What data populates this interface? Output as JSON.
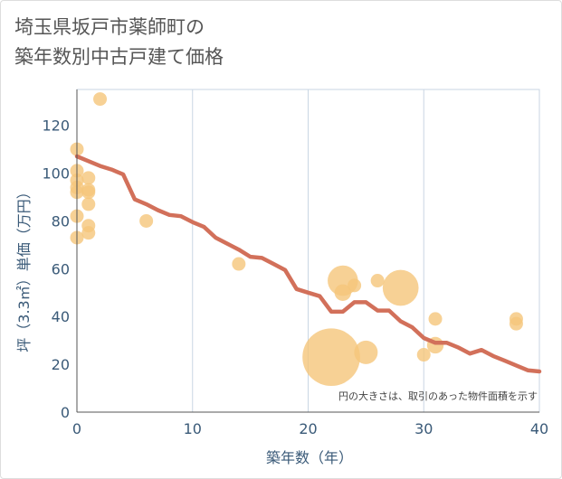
{
  "title": "埼玉県坂戸市薬師町の\n築年数別中古戸建て価格",
  "chart_data": {
    "type": "scatter",
    "xlabel": "築年数（年）",
    "ylabel": "坪（3.3㎡）単価（万円）",
    "xlim": [
      0,
      40
    ],
    "ylim": [
      0,
      135
    ],
    "xticks": [
      0,
      10,
      20,
      30,
      40
    ],
    "yticks": [
      0,
      20,
      40,
      60,
      80,
      100,
      120
    ],
    "grid": true,
    "note": "円の大きさは、取引のあった物件面積を示す",
    "colors": {
      "bubble": "#f5c57a",
      "line": "#d2705a",
      "grid": "#c9d6e3",
      "axis": "#3a5a78"
    },
    "points": [
      {
        "x": 0,
        "y": 110,
        "size": 1
      },
      {
        "x": 0,
        "y": 101,
        "size": 1
      },
      {
        "x": 0,
        "y": 97,
        "size": 1
      },
      {
        "x": 0,
        "y": 94,
        "size": 1
      },
      {
        "x": 0,
        "y": 92,
        "size": 1
      },
      {
        "x": 0,
        "y": 82,
        "size": 1
      },
      {
        "x": 0,
        "y": 73,
        "size": 1
      },
      {
        "x": 1,
        "y": 98,
        "size": 1
      },
      {
        "x": 1,
        "y": 93,
        "size": 1
      },
      {
        "x": 1,
        "y": 92,
        "size": 1
      },
      {
        "x": 1,
        "y": 87,
        "size": 1
      },
      {
        "x": 1,
        "y": 78,
        "size": 1
      },
      {
        "x": 1,
        "y": 75,
        "size": 1
      },
      {
        "x": 2,
        "y": 131,
        "size": 1
      },
      {
        "x": 6,
        "y": 80,
        "size": 1
      },
      {
        "x": 14,
        "y": 62,
        "size": 1
      },
      {
        "x": 22,
        "y": 23,
        "size": 18
      },
      {
        "x": 23,
        "y": 55,
        "size": 5
      },
      {
        "x": 23,
        "y": 50,
        "size": 1.5
      },
      {
        "x": 24,
        "y": 53,
        "size": 1
      },
      {
        "x": 25,
        "y": 25,
        "size": 3
      },
      {
        "x": 26,
        "y": 55,
        "size": 1
      },
      {
        "x": 28,
        "y": 52,
        "size": 7
      },
      {
        "x": 30,
        "y": 24,
        "size": 1
      },
      {
        "x": 31,
        "y": 39,
        "size": 1
      },
      {
        "x": 31,
        "y": 28,
        "size": 1.5
      },
      {
        "x": 38,
        "y": 39,
        "size": 1
      },
      {
        "x": 38,
        "y": 37,
        "size": 1
      }
    ],
    "trend": {
      "x": [
        0,
        1,
        2,
        3,
        4,
        5,
        6,
        7,
        8,
        9,
        10,
        11,
        12,
        13,
        14,
        15,
        16,
        17,
        18,
        19,
        20,
        21,
        22,
        23,
        24,
        25,
        26,
        27,
        28,
        29,
        30,
        31,
        32,
        33,
        34,
        35,
        36,
        37,
        38,
        39,
        40
      ],
      "y": [
        107,
        105,
        103,
        101.5,
        99.5,
        89,
        87,
        84.5,
        82.5,
        82,
        79.5,
        77.5,
        73,
        70.5,
        68,
        65,
        64.5,
        62,
        59.5,
        51.5,
        50,
        48.5,
        42,
        42,
        46,
        46,
        42.5,
        42.5,
        38,
        35.5,
        31,
        29,
        29,
        27,
        24.5,
        26,
        23.5,
        21.5,
        19.5,
        17.5,
        17
      ]
    }
  }
}
